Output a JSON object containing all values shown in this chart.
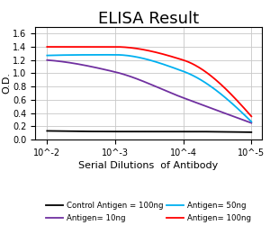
{
  "title": "ELISA Result",
  "ylabel": "O.D.",
  "xlabel": "Serial Dilutions  of Antibody",
  "x_values": [
    0.01,
    0.001,
    0.0001,
    1e-05
  ],
  "x_labels": [
    "10^-2",
    "10^-3",
    "10^-4",
    "10^-5"
  ],
  "control_antigen": {
    "label": "Control Antigen = 100ng",
    "color": "#000000",
    "y": [
      0.13,
      0.12,
      0.12,
      0.11
    ]
  },
  "antigen_10ng": {
    "label": "Antigen= 10ng",
    "color": "#7030a0",
    "y": [
      1.2,
      1.02,
      0.63,
      0.25
    ]
  },
  "antigen_50ng": {
    "label": "Antigen= 50ng",
    "color": "#00b0f0",
    "y": [
      1.27,
      1.28,
      1.03,
      0.27
    ]
  },
  "antigen_100ng": {
    "label": "Antigen= 100ng",
    "color": "#ff0000",
    "y": [
      1.4,
      1.4,
      1.2,
      0.35
    ]
  },
  "ylim": [
    0,
    1.7
  ],
  "yticks": [
    0,
    0.2,
    0.4,
    0.6,
    0.8,
    1.0,
    1.2,
    1.4,
    1.6
  ],
  "title_fontsize": 13,
  "axis_label_fontsize": 8,
  "tick_fontsize": 7,
  "legend_fontsize": 6.2,
  "background_color": "#ffffff",
  "grid_color": "#c8c8c8"
}
